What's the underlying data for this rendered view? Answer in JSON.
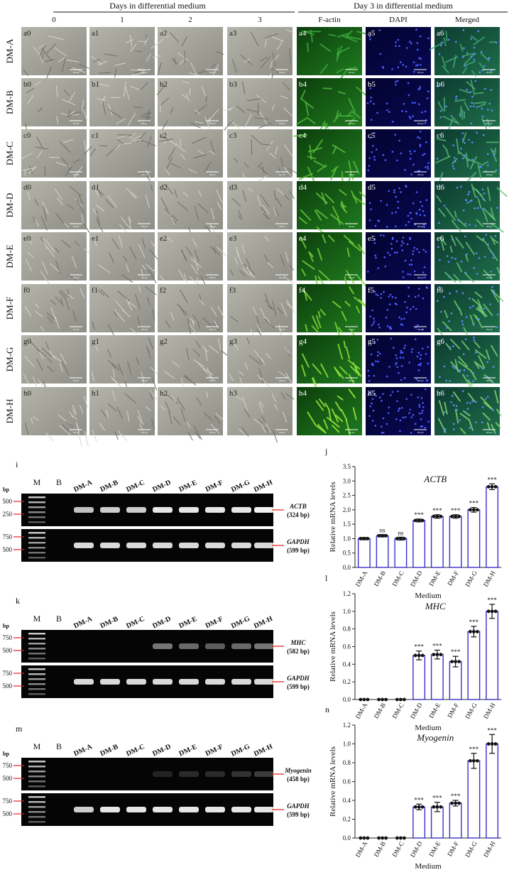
{
  "micrographs": {
    "header_left": "Days in differential medium",
    "header_right": "Day 3 in differential medium",
    "columns": [
      "0",
      "1",
      "2",
      "3",
      "F-actin",
      "DAPI",
      "Merged"
    ],
    "rows": [
      "DM-A",
      "DM-B",
      "DM-C",
      "DM-D",
      "DM-E",
      "DM-F",
      "DM-G",
      "DM-H"
    ],
    "tiles": [
      [
        "a0",
        "a1",
        "a2",
        "a3",
        "a4",
        "a5",
        "a6"
      ],
      [
        "b0",
        "b1",
        "b2",
        "b3",
        "b4",
        "b5",
        "b6"
      ],
      [
        "c0",
        "c1",
        "c2",
        "c3",
        "c4",
        "c5",
        "c6"
      ],
      [
        "d0",
        "d1",
        "d2",
        "d3",
        "d4",
        "d5",
        "d6"
      ],
      [
        "e0",
        "e1",
        "e2",
        "e3",
        "e4",
        "e5",
        "e6"
      ],
      [
        "f0",
        "f1",
        "f2",
        "f3",
        "f4",
        "f5",
        "f6"
      ],
      [
        "g0",
        "g1",
        "g2",
        "g3",
        "g4",
        "g5",
        "g6"
      ],
      [
        "h0",
        "h1",
        "h2",
        "h3",
        "h4",
        "h5",
        "h6"
      ]
    ],
    "scale_bar": "100 μm"
  },
  "gels": [
    {
      "label": "i",
      "bp": "bp",
      "lanes": [
        "M",
        "B",
        "DM-A",
        "DM-B",
        "DM-C",
        "DM-D",
        "DM-E",
        "DM-F",
        "DM-G",
        "DM-H"
      ],
      "strips": [
        {
          "markers": [
            "500",
            "250"
          ],
          "gene": "ACTB",
          "size": "(324 bp)"
        },
        {
          "markers": [
            "750",
            "500"
          ],
          "gene": "GAPDH",
          "size": "(599 bp)"
        }
      ]
    },
    {
      "label": "k",
      "bp": "bp",
      "lanes": [
        "M",
        "B",
        "DM-A",
        "DM-B",
        "DM-C",
        "DM-D",
        "DM-E",
        "DM-F",
        "DM-G",
        "DM-H"
      ],
      "strips": [
        {
          "markers": [
            "750",
            "500"
          ],
          "gene": "MHC",
          "size": "(582 bp)"
        },
        {
          "markers": [
            "750",
            "500"
          ],
          "gene": "GAPDH",
          "size": "(599 bp)"
        }
      ]
    },
    {
      "label": "m",
      "bp": "bp",
      "lanes": [
        "M",
        "B",
        "DM-A",
        "DM-B",
        "DM-C",
        "DM-D",
        "DM-E",
        "DM-F",
        "DM-G",
        "DM-H"
      ],
      "strips": [
        {
          "markers": [
            "750",
            "500"
          ],
          "gene": "Myogenin",
          "size": "(458 bp)"
        },
        {
          "markers": [
            "750",
            "500"
          ],
          "gene": "GAPDH",
          "size": "(599 bp)"
        }
      ]
    }
  ],
  "chart_data": [
    {
      "type": "bar",
      "label": "j",
      "title": "ACTB",
      "ylabel": "Relative mRNA levels",
      "xlabel": "Medium",
      "categories": [
        "DM-A",
        "DM-B",
        "DM-C",
        "DM-D",
        "DM-E",
        "DM-F",
        "DM-G",
        "DM-H"
      ],
      "values": [
        1.0,
        1.1,
        1.0,
        1.63,
        1.77,
        1.77,
        2.0,
        2.8
      ],
      "errors": [
        0.04,
        0.04,
        0.05,
        0.05,
        0.06,
        0.06,
        0.08,
        0.1
      ],
      "significance": [
        null,
        "ns",
        "ns",
        "***",
        "***",
        "***",
        "***",
        "***"
      ],
      "ylim": [
        0,
        3.5
      ],
      "yticks": [
        {
          "value": 0,
          "label": "0.0"
        },
        0.5,
        {
          "value": 1,
          "label": "1.0"
        },
        1.5,
        {
          "value": 2,
          "label": "2.0"
        },
        2.5,
        {
          "value": 3,
          "label": "3.0"
        },
        3.5
      ],
      "color": "#3a2fd0"
    },
    {
      "type": "bar",
      "label": "l",
      "title": "MHC",
      "ylabel": "Relative mRNA levels",
      "xlabel": "Medium",
      "categories": [
        "DM-A",
        "DM-B",
        "DM-C",
        "DM-D",
        "DM-E",
        "DM-F",
        "DM-G",
        "DM-H"
      ],
      "values": [
        0,
        0,
        0,
        0.5,
        0.51,
        0.43,
        0.77,
        1.0
      ],
      "errors": [
        null,
        null,
        null,
        0.05,
        0.05,
        0.06,
        0.06,
        0.08
      ],
      "significance": [
        null,
        null,
        null,
        "***",
        "***",
        "***",
        "***",
        "***"
      ],
      "ylim": [
        0,
        1.2
      ],
      "yticks": [
        {
          "value": 0,
          "label": "0.0"
        },
        0.2,
        0.4,
        0.6,
        0.8,
        {
          "value": 1,
          "label": "1.0"
        },
        1.2
      ],
      "color": "#3a2fd0"
    },
    {
      "type": "bar",
      "label": "n",
      "title": "Myogenin",
      "ylabel": "Relative mRNA levels",
      "xlabel": "Medium",
      "categories": [
        "DM-A",
        "DM-B",
        "DM-C",
        "DM-D",
        "DM-E",
        "DM-F",
        "DM-G",
        "DM-H"
      ],
      "values": [
        0,
        0,
        0,
        0.33,
        0.33,
        0.37,
        0.82,
        1.0
      ],
      "errors": [
        null,
        null,
        null,
        0.03,
        0.05,
        0.03,
        0.08,
        0.1
      ],
      "significance": [
        null,
        null,
        null,
        "***",
        "***",
        "***",
        "***",
        "***"
      ],
      "ylim": [
        0,
        1.2
      ],
      "yticks": [
        {
          "value": 0,
          "label": "0.0"
        },
        0.2,
        0.4,
        0.6,
        0.8,
        {
          "value": 1,
          "label": "1.0"
        },
        1.2
      ],
      "color": "#3a2fd0"
    }
  ]
}
